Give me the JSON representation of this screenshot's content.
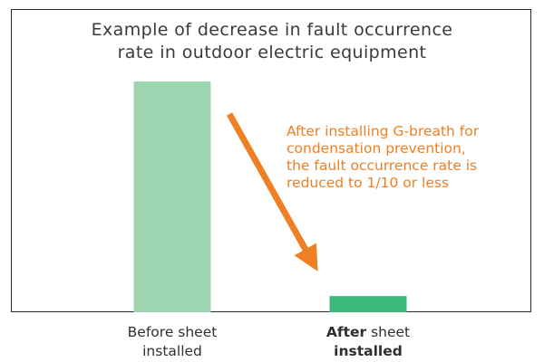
{
  "chart_data": {
    "type": "bar",
    "title_lines": [
      "Example of decrease in fault occurrence",
      "rate in outdoor electric equipment"
    ],
    "categories": [
      "Before sheet installed",
      "After sheet installed"
    ],
    "category_label_lines": [
      [
        "Before sheet",
        "installed"
      ],
      [
        "After sheet",
        "installed"
      ]
    ],
    "values": [
      100,
      7
    ],
    "ylim": [
      0,
      100
    ],
    "bar_colors": [
      "#9dd5b1",
      "#3cb878"
    ],
    "annotation_lines": [
      "After installing G-breath for",
      "condensation prevention,",
      "the fault occurrence rate is",
      "reduced to 1/10 or less"
    ],
    "annotation_color": "#ee7f22",
    "arrow_color": "#ee7f22",
    "grid": false,
    "legend": "none"
  }
}
